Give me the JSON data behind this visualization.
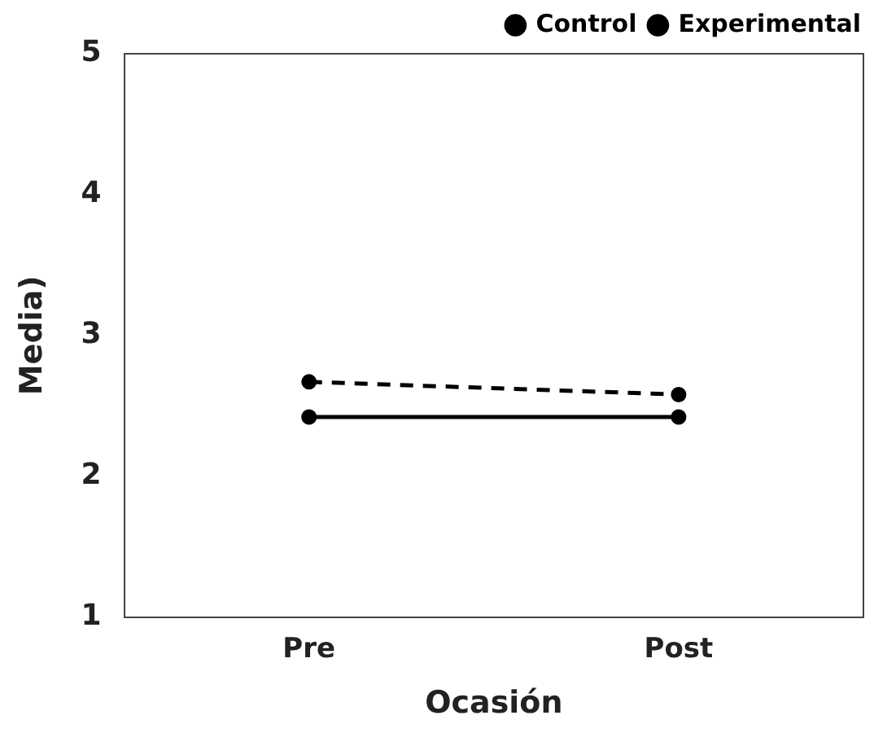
{
  "chart_data": {
    "type": "line",
    "xlabel": "Ocasión",
    "ylabel": "Media)",
    "categories": [
      "Pre",
      "Post"
    ],
    "series": [
      {
        "name": "Control",
        "color": "#000000",
        "values": [
          2.42,
          2.42
        ],
        "line_style": "solid"
      },
      {
        "name": "Experimental",
        "color": "#000000",
        "values": [
          2.67,
          2.58
        ],
        "line_style": "dashed"
      }
    ],
    "ylim": [
      1,
      5
    ],
    "yticks": [
      1,
      2,
      3,
      4,
      5
    ],
    "grid": false,
    "legend": "top right",
    "marker": "circle"
  }
}
